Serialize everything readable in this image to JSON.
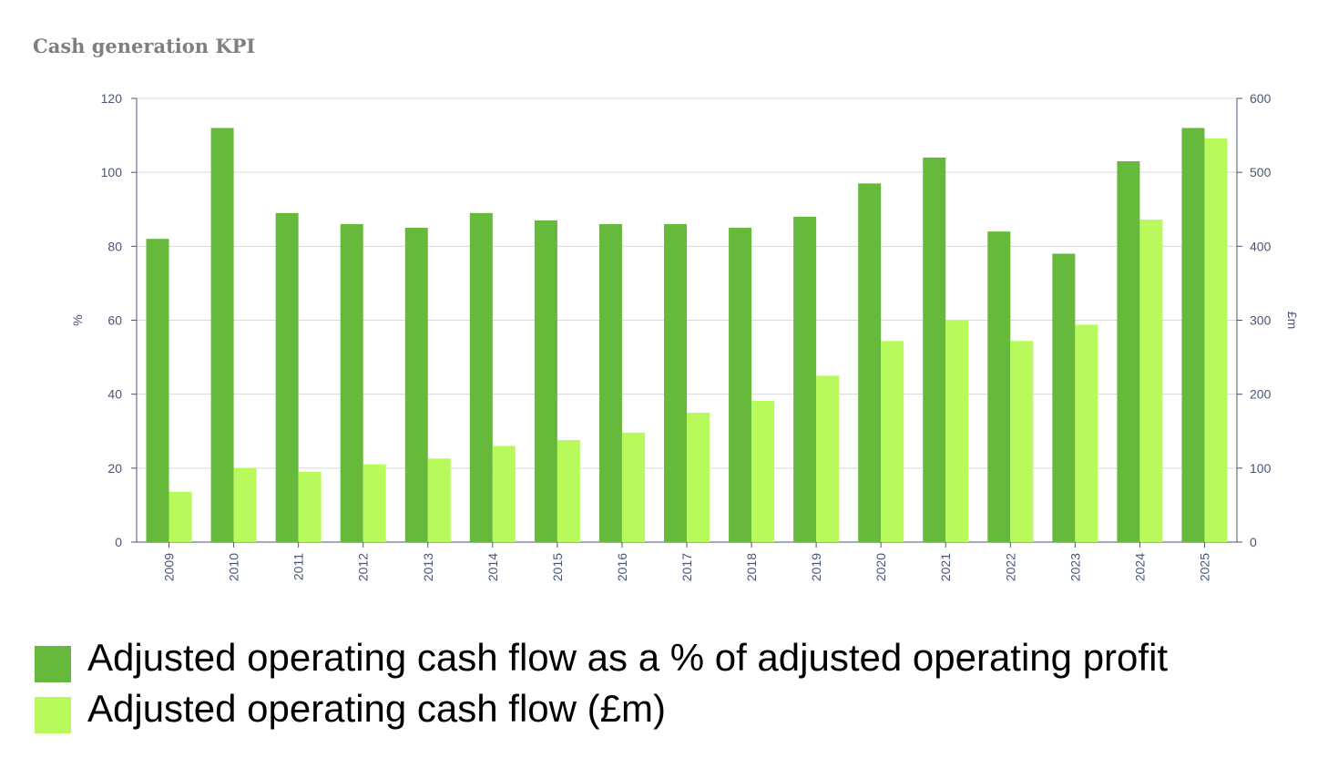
{
  "title": "Cash generation KPI",
  "colors": {
    "series_pct": "#66b93a",
    "series_gbp": "#b8fa5c",
    "axis": "#4a5578",
    "grid": "#d9d9d9"
  },
  "legend": {
    "items": [
      "Adjusted operating cash flow as a % of adjusted operating profit",
      "Adjusted operating cash flow (£m)"
    ]
  },
  "chart_data": {
    "type": "bar",
    "categories": [
      "2009",
      "2010",
      "2011",
      "2012",
      "2013",
      "2014",
      "2015",
      "2016",
      "2017",
      "2018",
      "2019",
      "2020",
      "2021",
      "2022",
      "2023",
      "2024",
      "2025"
    ],
    "series": [
      {
        "name": "Adjusted operating cash flow as a % of adjusted operating profit",
        "axis": "left",
        "values": [
          82,
          112,
          89,
          86,
          85,
          89,
          87,
          86,
          86,
          85,
          88,
          97,
          104,
          84,
          78,
          103,
          112
        ]
      },
      {
        "name": "Adjusted operating cash flow (£m)",
        "axis": "right",
        "values": [
          68,
          100,
          95,
          105,
          113,
          130,
          138,
          148,
          175,
          191,
          225,
          272,
          300,
          272,
          294,
          436,
          546
        ]
      }
    ],
    "ylabel_left": "%",
    "ylabel_right": "£m",
    "ylim_left": [
      0,
      120
    ],
    "ylim_right": [
      0,
      600
    ],
    "yticks_left": [
      "0",
      "20",
      "40",
      "60",
      "80",
      "100",
      "120"
    ],
    "yticks_right": [
      "0",
      "100",
      "200",
      "300",
      "400",
      "500",
      "600"
    ],
    "grid": true,
    "legend_position": "bottom-left"
  }
}
